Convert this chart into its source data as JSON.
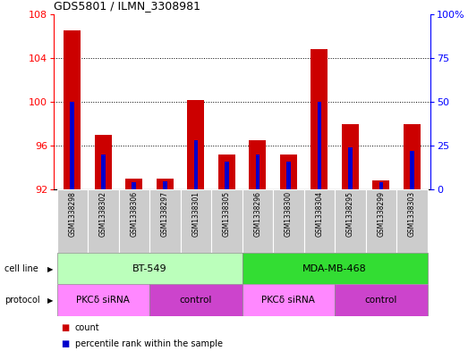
{
  "title": "GDS5801 / ILMN_3308981",
  "samples": [
    "GSM1338298",
    "GSM1338302",
    "GSM1338306",
    "GSM1338297",
    "GSM1338301",
    "GSM1338305",
    "GSM1338296",
    "GSM1338300",
    "GSM1338304",
    "GSM1338295",
    "GSM1338299",
    "GSM1338303"
  ],
  "count_values": [
    106.5,
    97.0,
    93.0,
    93.0,
    100.2,
    95.2,
    96.5,
    95.2,
    104.8,
    98.0,
    92.8,
    98.0
  ],
  "percentile_values": [
    50.0,
    20.0,
    4.0,
    4.5,
    28.0,
    16.0,
    20.0,
    16.0,
    50.0,
    24.0,
    4.0,
    22.0
  ],
  "y_min": 92,
  "y_max": 108,
  "y_ticks": [
    92,
    96,
    100,
    104,
    108
  ],
  "y2_ticks": [
    0,
    25,
    50,
    75,
    100
  ],
  "bar_color_red": "#cc0000",
  "bar_color_blue": "#0000cc",
  "bar_width": 0.55,
  "cell_line_groups": [
    {
      "label": "BT-549",
      "start": 0,
      "end": 5,
      "color": "#bbffbb"
    },
    {
      "label": "MDA-MB-468",
      "start": 6,
      "end": 11,
      "color": "#33dd33"
    }
  ],
  "protocol_groups": [
    {
      "label": "PKCδ siRNA",
      "start": 0,
      "end": 2,
      "color": "#ff88ff"
    },
    {
      "label": "control",
      "start": 3,
      "end": 5,
      "color": "#cc44cc"
    },
    {
      "label": "PKCδ siRNA",
      "start": 6,
      "end": 8,
      "color": "#ff88ff"
    },
    {
      "label": "control",
      "start": 9,
      "end": 11,
      "color": "#cc44cc"
    }
  ],
  "bg_color": "#ffffff"
}
